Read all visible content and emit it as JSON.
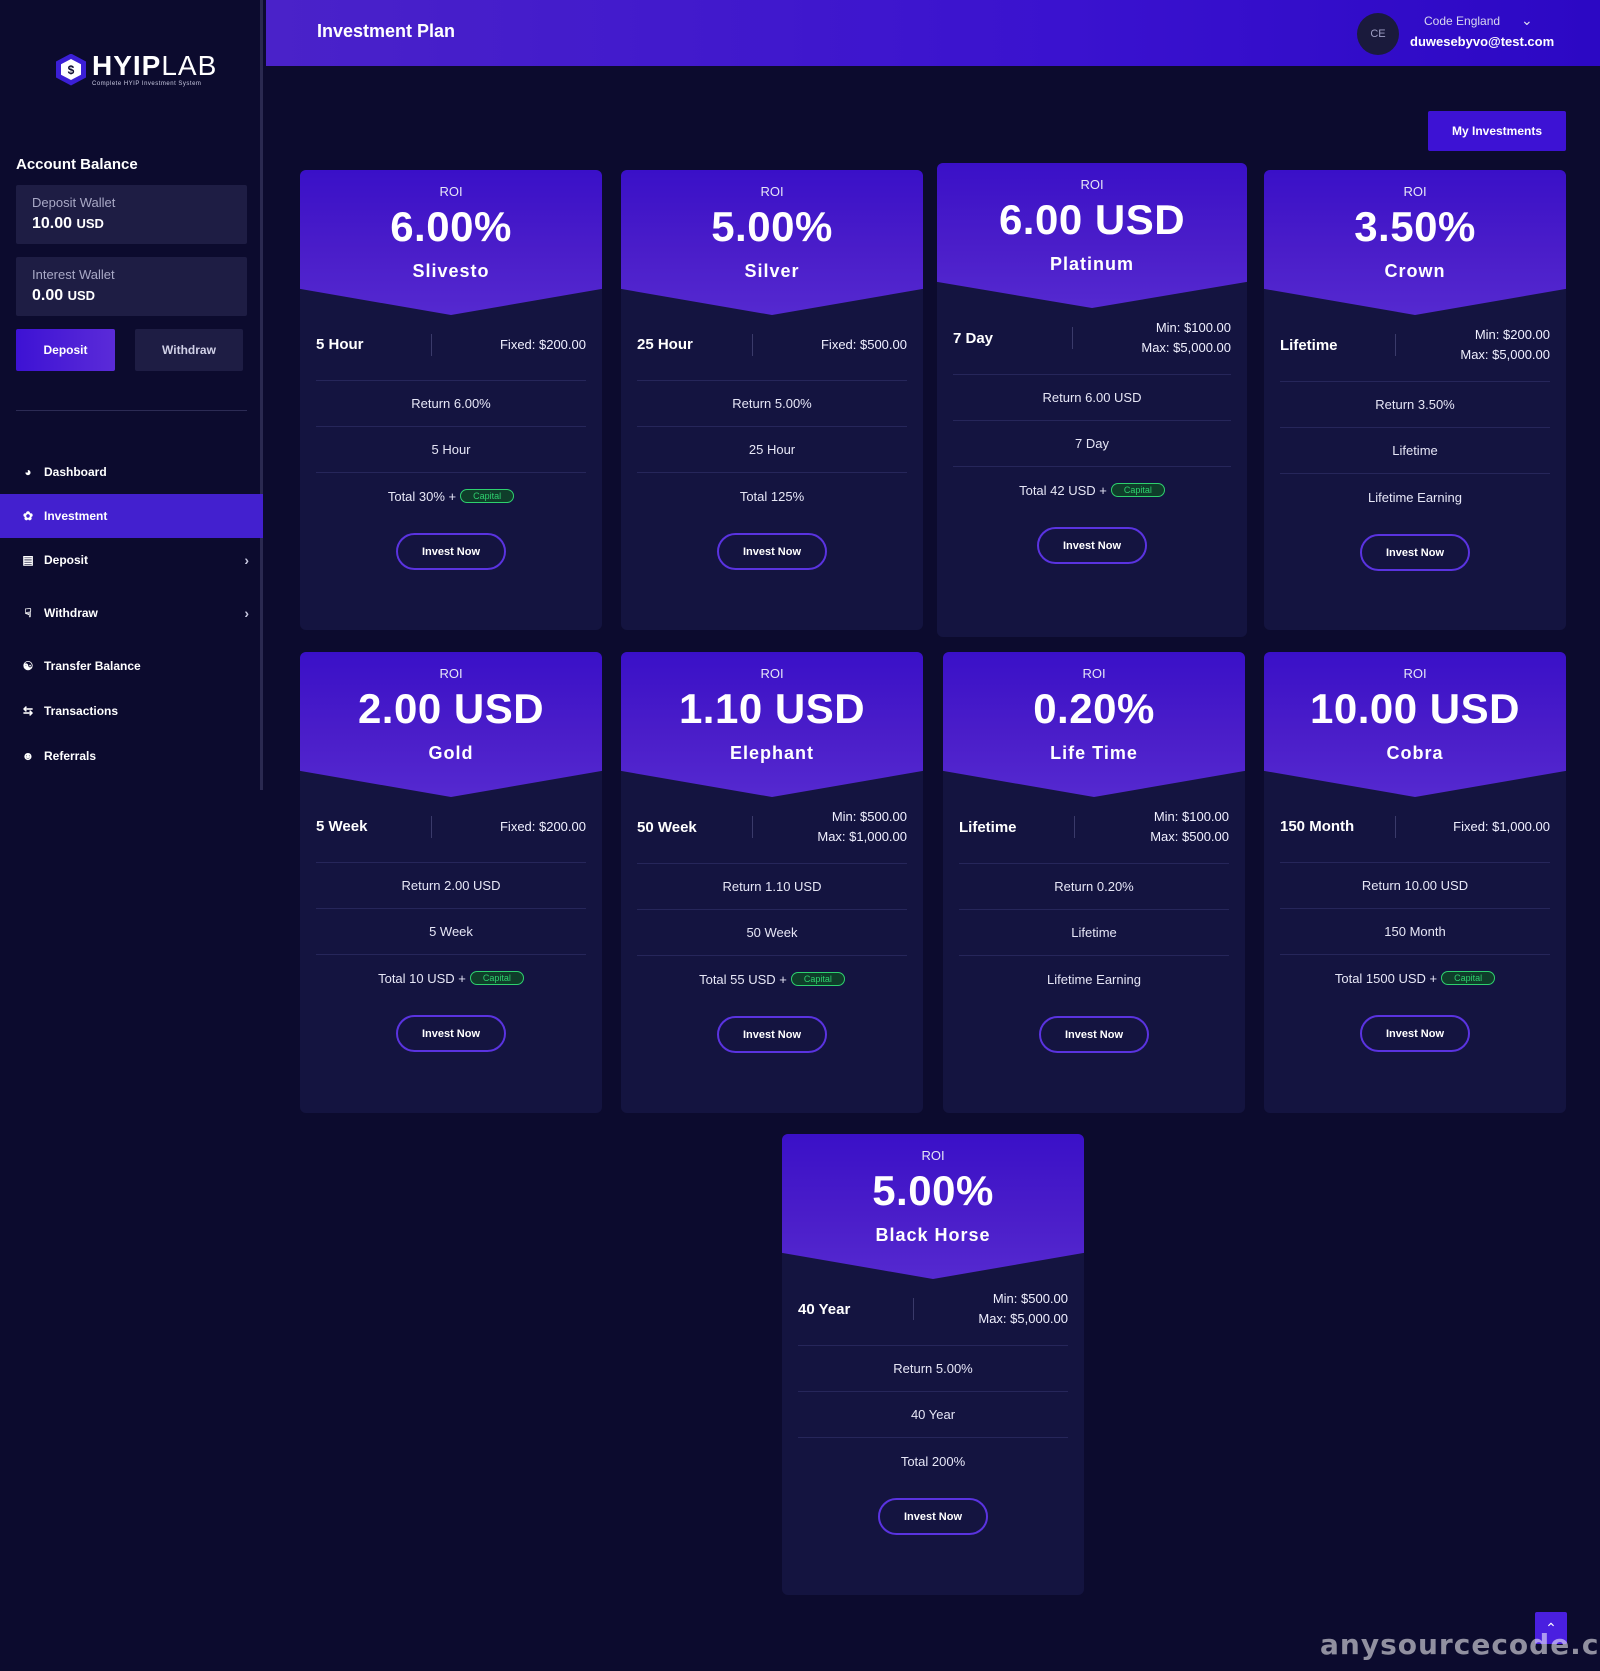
{
  "brand": {
    "name_bold": "HYIP",
    "name_light": "LAB",
    "tagline": "Complete HYIP Investment System"
  },
  "sidebar": {
    "account_balance_title": "Account Balance",
    "wallets": [
      {
        "label": "Deposit Wallet",
        "amount": "10.00",
        "currency": "USD"
      },
      {
        "label": "Interest Wallet",
        "amount": "0.00",
        "currency": "USD"
      }
    ],
    "deposit_label": "Deposit",
    "withdraw_label": "Withdraw",
    "nav": [
      {
        "label": "Dashboard",
        "icon": "gauge-icon"
      },
      {
        "label": "Investment",
        "icon": "money-plant-icon",
        "active": true
      },
      {
        "label": "Deposit",
        "icon": "wallet-icon",
        "has_children": true
      },
      {
        "label": "Withdraw",
        "icon": "hand-money-icon",
        "has_children": true
      },
      {
        "label": "Transfer Balance",
        "icon": "handshake-icon"
      },
      {
        "label": "Transactions",
        "icon": "exchange-icon"
      },
      {
        "label": "Referrals",
        "icon": "users-icon"
      }
    ]
  },
  "header": {
    "title": "Investment Plan",
    "avatar_initials": "CE",
    "user_name": "Code England",
    "user_email": "duwesebyvo@test.com"
  },
  "my_investments_label": "My Investments",
  "roi_label": "ROI",
  "invest_label": "Invest Now",
  "capital_label": "Capital",
  "plans": [
    {
      "roi": "6.00%",
      "name": "Slivesto",
      "duration": "5 Hour",
      "limit_lines": [
        "Fixed: $200.00"
      ],
      "rows": [
        "Return 6.00%",
        "5 Hour",
        "Total 30% +"
      ],
      "capital": true
    },
    {
      "roi": "5.00%",
      "name": "Silver",
      "duration": "25 Hour",
      "limit_lines": [
        "Fixed: $500.00"
      ],
      "rows": [
        "Return 5.00%",
        "25 Hour",
        "Total 125%"
      ],
      "capital": false
    },
    {
      "roi": "6.00 USD",
      "name": "Platinum",
      "duration": "7 Day",
      "limit_lines": [
        "Min: $100.00",
        "Max: $5,000.00"
      ],
      "rows": [
        "Return 6.00 USD",
        "7 Day",
        "Total 42 USD +"
      ],
      "capital": true
    },
    {
      "roi": "3.50%",
      "name": "Crown",
      "duration": "Lifetime",
      "limit_lines": [
        "Min: $200.00",
        "Max: $5,000.00"
      ],
      "rows": [
        "Return 3.50%",
        "Lifetime",
        "Lifetime Earning"
      ],
      "capital": false
    },
    {
      "roi": "2.00 USD",
      "name": "Gold",
      "duration": "5 Week",
      "limit_lines": [
        "Fixed: $200.00"
      ],
      "rows": [
        "Return 2.00 USD",
        "5 Week",
        "Total 10 USD +"
      ],
      "capital": true
    },
    {
      "roi": "1.10 USD",
      "name": "Elephant",
      "duration": "50 Week",
      "limit_lines": [
        "Min: $500.00",
        "Max: $1,000.00"
      ],
      "rows": [
        "Return 1.10 USD",
        "50 Week",
        "Total 55 USD +"
      ],
      "capital": true
    },
    {
      "roi": "0.20%",
      "name": "Life Time",
      "duration": "Lifetime",
      "limit_lines": [
        "Min: $100.00",
        "Max: $500.00"
      ],
      "rows": [
        "Return 0.20%",
        "Lifetime",
        "Lifetime Earning"
      ],
      "capital": false
    },
    {
      "roi": "10.00 USD",
      "name": "Cobra",
      "duration": "150 Month",
      "limit_lines": [
        "Fixed: $1,000.00"
      ],
      "rows": [
        "Return 10.00 USD",
        "150 Month",
        "Total 1500 USD +"
      ],
      "capital": true
    },
    {
      "roi": "5.00%",
      "name": "Black Horse",
      "duration": "40 Year",
      "limit_lines": [
        "Min: $500.00",
        "Max: $5,000.00"
      ],
      "rows": [
        "Return 5.00%",
        "40 Year",
        "Total 200%"
      ],
      "capital": false
    }
  ],
  "watermark": "anysourcecode.com",
  "colors": {
    "accent": "#3d12d4",
    "capital_green": "#2ed06e",
    "background": "#0c0b2e",
    "card": "#141440"
  }
}
